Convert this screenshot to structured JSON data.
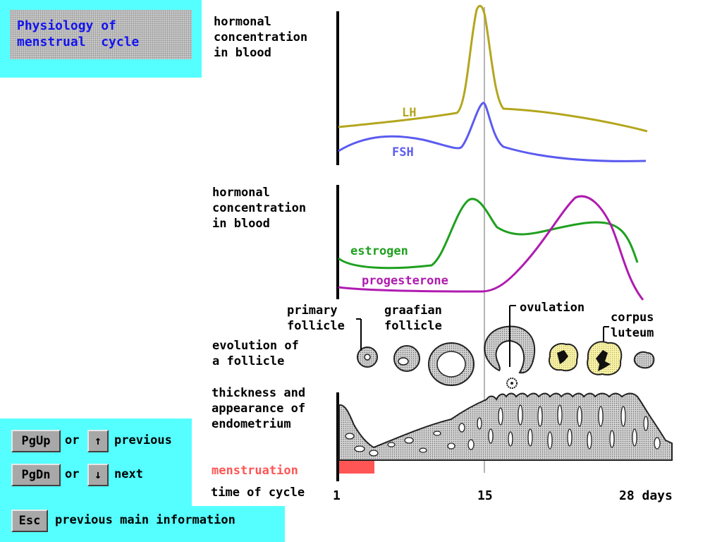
{
  "title": {
    "line1": "Physiology of",
    "line2": "menstrual  cycle"
  },
  "panels": {
    "gonadotropins": {
      "label": "hormonal\nconcentration\nin blood",
      "series": [
        "LH",
        "FSH"
      ]
    },
    "ovarian": {
      "label": "hormonal\nconcentration\nin blood",
      "series": [
        "estrogen",
        "progesterone"
      ]
    },
    "follicle": {
      "label": "evolution of\na follicle",
      "annotations": {
        "primary": "primary\nfollicle",
        "graafian": "graafian\nfollicle",
        "ovulation": "ovulation",
        "corpus": "corpus\nluteum"
      }
    },
    "endometrium": {
      "label": "thickness and\nappearance of\nendometrium"
    },
    "menstruation": {
      "label": "menstruation"
    },
    "time": {
      "label": "time of cycle",
      "ticks": [
        "1",
        "15",
        "28 days"
      ]
    }
  },
  "nav": {
    "pgup_key": "PgUp",
    "up_key": "↑",
    "or1": "or",
    "previous": "previous",
    "pgdn_key": "PgDn",
    "down_key": "↓",
    "or2": "or",
    "next": "next",
    "esc_key": "Esc",
    "esc_label": "previous main information"
  },
  "colors": {
    "lh": "#b3a61d",
    "fsh": "#5b5bf0",
    "estrogen": "#1fa01f",
    "progesterone": "#b01bb0",
    "menstruation": "#ff5555",
    "title": "#1414ee",
    "panel": "#55ffff"
  },
  "chart_data": [
    {
      "type": "line",
      "title": "",
      "xlabel": "time of cycle",
      "ylabel": "hormonal concentration in blood",
      "x": [
        1,
        6,
        10,
        13,
        14,
        14.5,
        15,
        16,
        20,
        24,
        28
      ],
      "series": [
        {
          "name": "LH",
          "values": [
            2.0,
            2.4,
            2.7,
            3.5,
            6.0,
            10.0,
            8.0,
            3.8,
            3.4,
            2.8,
            2.2
          ]
        },
        {
          "name": "FSH",
          "values": [
            1.1,
            2.2,
            1.9,
            1.5,
            3.0,
            4.6,
            3.0,
            1.6,
            1.0,
            0.6,
            0.5
          ]
        }
      ]
    },
    {
      "type": "line",
      "title": "",
      "xlabel": "time of cycle",
      "ylabel": "hormonal concentration in blood",
      "x": [
        1,
        4,
        9,
        12,
        14,
        15.5,
        17,
        21,
        25,
        27,
        28
      ],
      "series": [
        {
          "name": "estrogen",
          "values": [
            3.0,
            2.8,
            3.0,
            7.0,
            8.6,
            5.6,
            5.2,
            5.8,
            5.9,
            3.5,
            1.2
          ]
        },
        {
          "name": "progesterone",
          "values": [
            1.0,
            0.8,
            0.6,
            0.6,
            0.7,
            1.0,
            2.5,
            7.5,
            10.0,
            6.0,
            0.5
          ]
        }
      ]
    }
  ]
}
